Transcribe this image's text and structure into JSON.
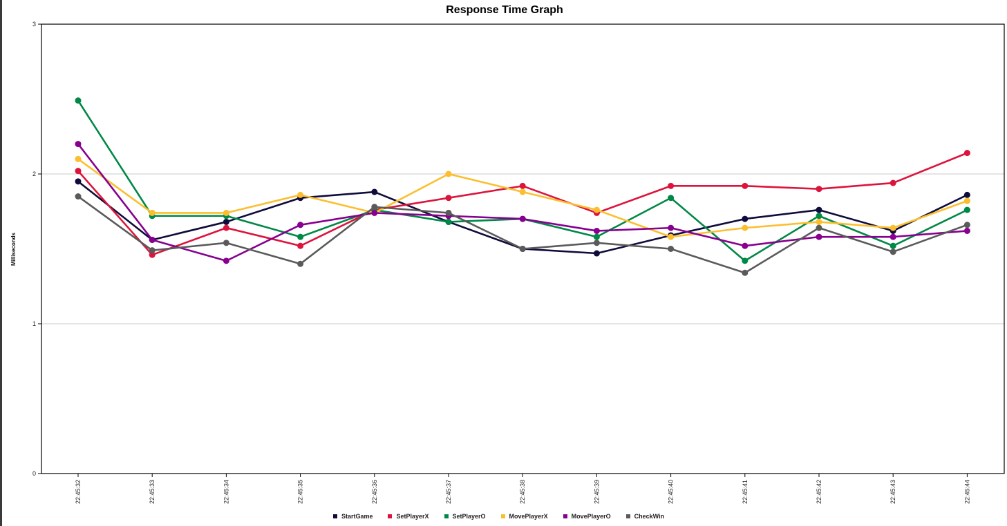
{
  "chart_data": {
    "type": "line",
    "title": "Response Time Graph",
    "xlabel": "",
    "ylabel": "Milliseconds",
    "ylim": [
      0,
      3
    ],
    "yticks": [
      0,
      1,
      2,
      3
    ],
    "grid": true,
    "legend_position": "bottom",
    "categories": [
      "22:45:32",
      "22:45:33",
      "22:45:34",
      "22:45:35",
      "22:45:36",
      "22:45:37",
      "22:45:38",
      "22:45:39",
      "22:45:40",
      "22:45:41",
      "22:45:42",
      "22:45:43",
      "22:45:44"
    ],
    "series": [
      {
        "name": "StartGame",
        "color": "#0f0b3a",
        "values": [
          1.95,
          1.56,
          1.68,
          1.84,
          1.88,
          1.68,
          1.5,
          1.47,
          1.59,
          1.7,
          1.76,
          1.62,
          1.86
        ]
      },
      {
        "name": "SetPlayerX",
        "color": "#dc143c",
        "values": [
          2.02,
          1.46,
          1.64,
          1.52,
          1.76,
          1.84,
          1.92,
          1.74,
          1.92,
          1.92,
          1.9,
          1.94,
          2.14
        ]
      },
      {
        "name": "SetPlayerO",
        "color": "#008846",
        "values": [
          2.49,
          1.72,
          1.72,
          1.58,
          1.76,
          1.68,
          1.7,
          1.58,
          1.84,
          1.42,
          1.72,
          1.52,
          1.76
        ]
      },
      {
        "name": "MovePlayerX",
        "color": "#fbbf2e",
        "values": [
          2.1,
          1.74,
          1.74,
          1.86,
          1.74,
          2.0,
          1.88,
          1.76,
          1.58,
          1.64,
          1.68,
          1.64,
          1.82
        ]
      },
      {
        "name": "MovePlayerO",
        "color": "#87008f",
        "values": [
          2.2,
          1.56,
          1.42,
          1.66,
          1.74,
          1.72,
          1.7,
          1.62,
          1.64,
          1.52,
          1.58,
          1.58,
          1.62
        ]
      },
      {
        "name": "CheckWin",
        "color": "#5a5a5a",
        "values": [
          1.85,
          1.49,
          1.54,
          1.4,
          1.78,
          1.74,
          1.5,
          1.54,
          1.5,
          1.34,
          1.64,
          1.48,
          1.66
        ]
      }
    ]
  }
}
